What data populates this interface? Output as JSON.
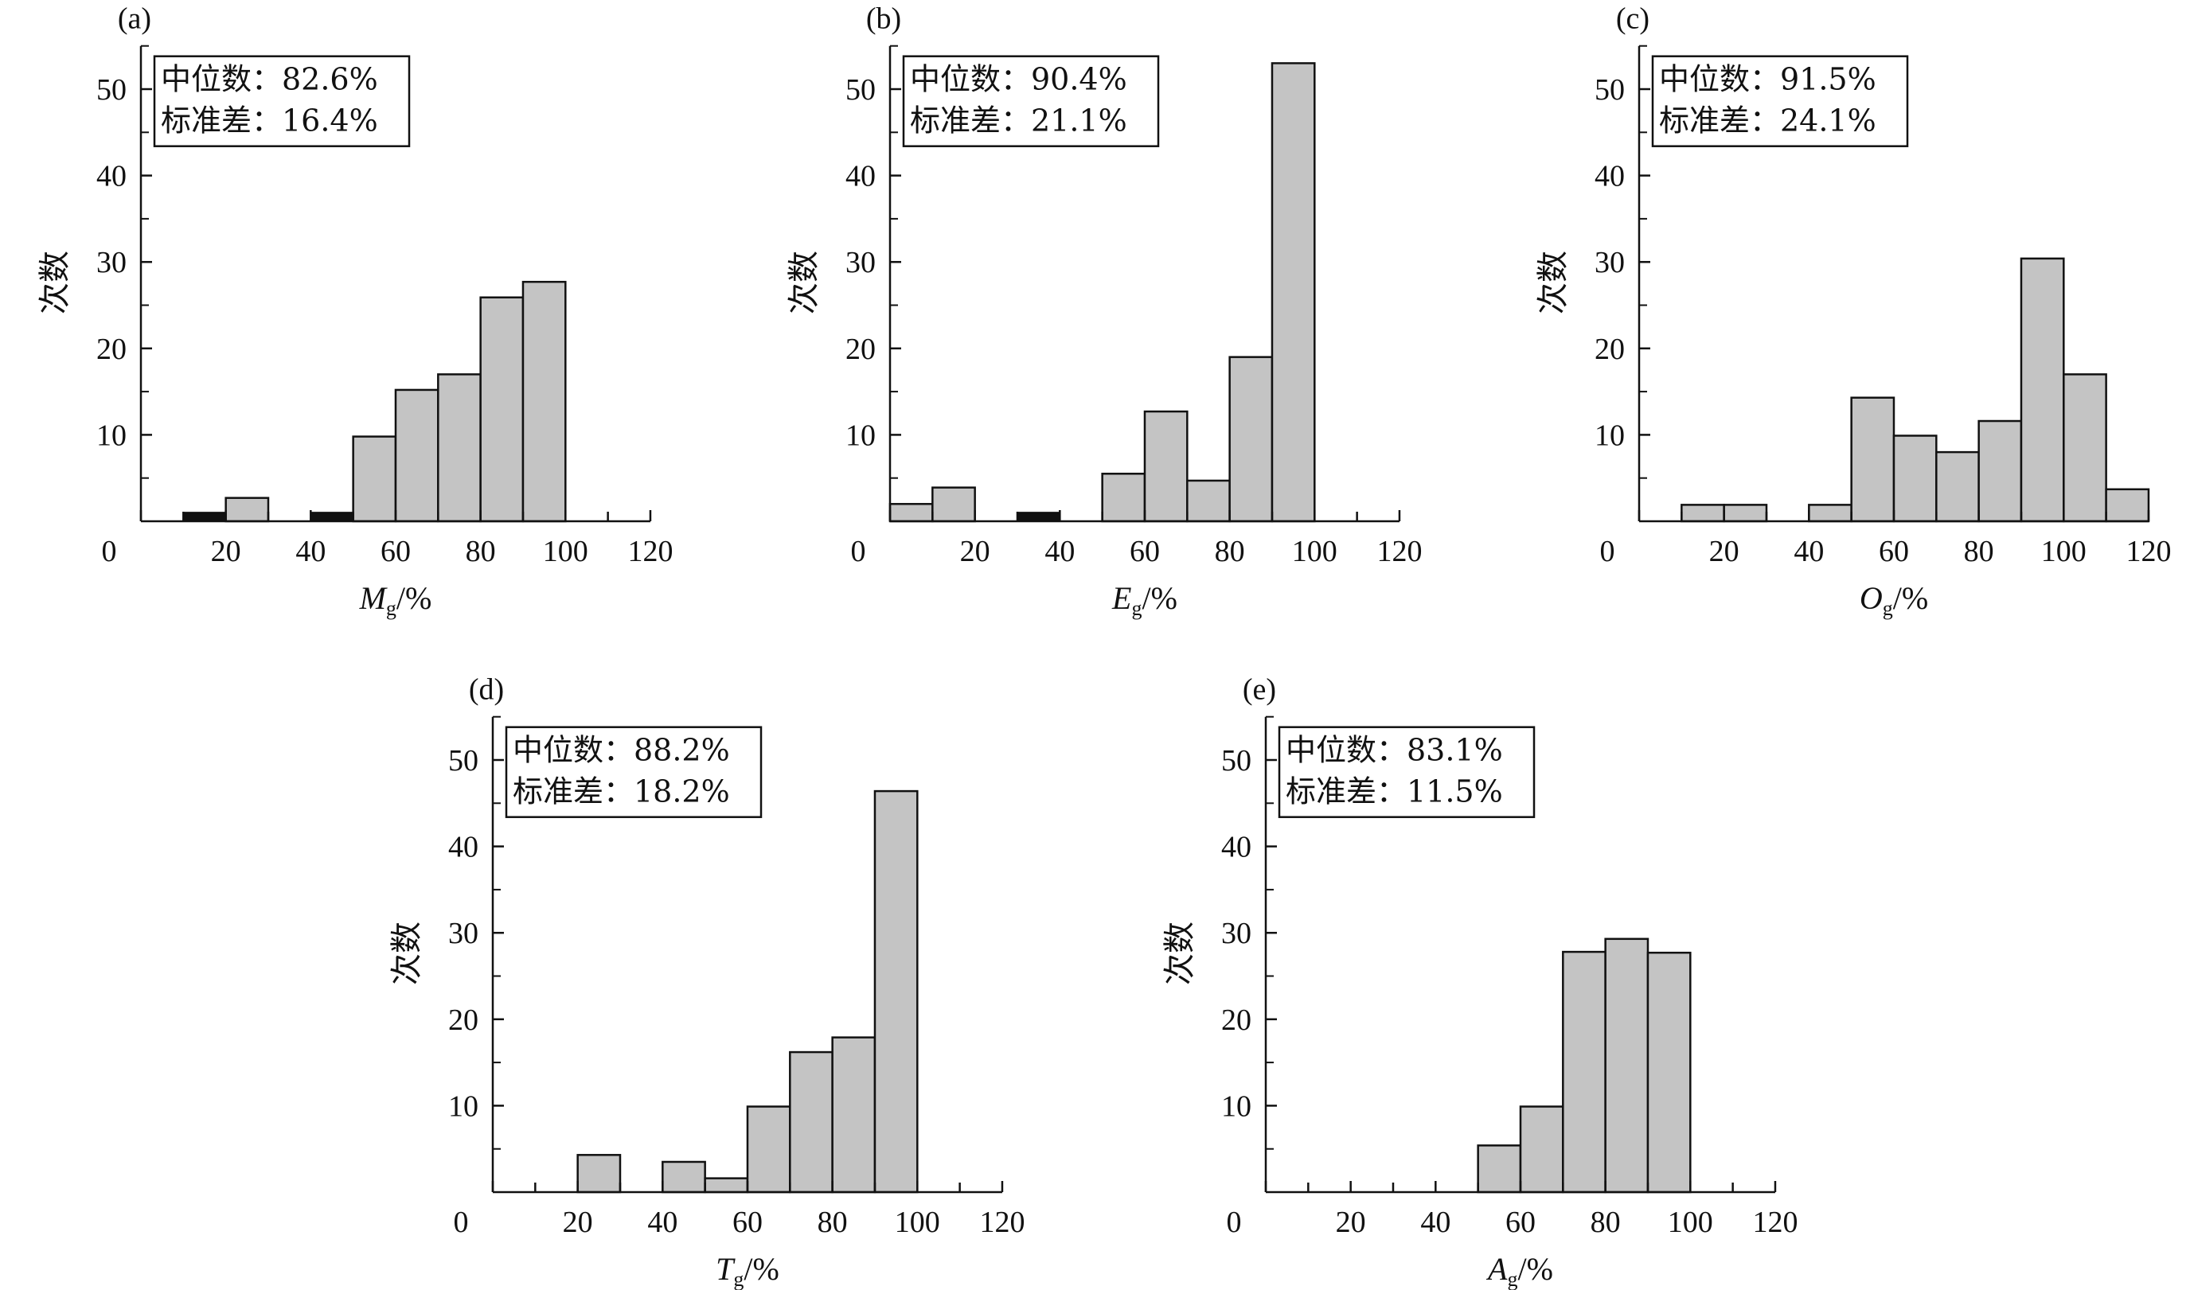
{
  "colors": {
    "bar_gray": "#c4c4c4",
    "bar_black": "#111111",
    "stroke": "#111111"
  },
  "chart_data": [
    {
      "type": "bar",
      "panel": "(a)",
      "xlabel_var": "M",
      "xlabel_sub": "g",
      "xlabel_unit": "/%",
      "ylabel": "次数",
      "stats": [
        "中位数：82.6%",
        "标准差：16.4%"
      ],
      "xlim": [
        0,
        120
      ],
      "ylim": [
        0,
        55
      ],
      "xticks": [
        0,
        20,
        40,
        60,
        80,
        100,
        120
      ],
      "yticks": [
        10,
        20,
        30,
        40,
        50
      ],
      "gray_bins": [
        {
          "x0": 20,
          "x1": 30,
          "value": 2.7
        },
        {
          "x0": 50,
          "x1": 60,
          "value": 9.8
        },
        {
          "x0": 60,
          "x1": 70,
          "value": 15.2
        },
        {
          "x0": 70,
          "x1": 80,
          "value": 17.0
        },
        {
          "x0": 80,
          "x1": 90,
          "value": 25.9
        },
        {
          "x0": 90,
          "x1": 100,
          "value": 27.7
        }
      ],
      "black_bins": [
        {
          "x0": 10,
          "x1": 20,
          "value": 1
        },
        {
          "x0": 40,
          "x1": 50,
          "value": 1
        }
      ]
    },
    {
      "type": "bar",
      "panel": "(b)",
      "xlabel_var": "E",
      "xlabel_sub": "g",
      "xlabel_unit": "/%",
      "ylabel": "次数",
      "stats": [
        "中位数：90.4%",
        "标准差：21.1%"
      ],
      "xlim": [
        0,
        120
      ],
      "ylim": [
        0,
        55
      ],
      "xticks": [
        0,
        20,
        40,
        60,
        80,
        100,
        120
      ],
      "yticks": [
        10,
        20,
        30,
        40,
        50
      ],
      "gray_bins": [
        {
          "x0": 0,
          "x1": 10,
          "value": 2.0
        },
        {
          "x0": 10,
          "x1": 20,
          "value": 3.9
        },
        {
          "x0": 50,
          "x1": 60,
          "value": 5.5
        },
        {
          "x0": 60,
          "x1": 70,
          "value": 12.7
        },
        {
          "x0": 70,
          "x1": 80,
          "value": 4.7
        },
        {
          "x0": 80,
          "x1": 90,
          "value": 19.0
        },
        {
          "x0": 90,
          "x1": 100,
          "value": 53.0
        }
      ],
      "black_bins": [
        {
          "x0": 30,
          "x1": 40,
          "value": 1
        }
      ]
    },
    {
      "type": "bar",
      "panel": "(c)",
      "xlabel_var": "O",
      "xlabel_sub": "g",
      "xlabel_unit": "/%",
      "ylabel": "次数",
      "stats": [
        "中位数：91.5%",
        "标准差：24.1%"
      ],
      "xlim": [
        0,
        120
      ],
      "ylim": [
        0,
        55
      ],
      "xticks": [
        0,
        20,
        40,
        60,
        80,
        100,
        120
      ],
      "yticks": [
        10,
        20,
        30,
        40,
        50
      ],
      "gray_bins": [
        {
          "x0": 10,
          "x1": 20,
          "value": 1.9
        },
        {
          "x0": 20,
          "x1": 30,
          "value": 1.9
        },
        {
          "x0": 40,
          "x1": 50,
          "value": 1.9
        },
        {
          "x0": 50,
          "x1": 60,
          "value": 14.3
        },
        {
          "x0": 60,
          "x1": 70,
          "value": 9.9
        },
        {
          "x0": 70,
          "x1": 80,
          "value": 8.0
        },
        {
          "x0": 80,
          "x1": 90,
          "value": 11.6
        },
        {
          "x0": 90,
          "x1": 100,
          "value": 30.4
        },
        {
          "x0": 100,
          "x1": 110,
          "value": 17.0
        },
        {
          "x0": 110,
          "x1": 120,
          "value": 3.7
        }
      ],
      "black_bins": []
    },
    {
      "type": "bar",
      "panel": "(d)",
      "xlabel_var": "T",
      "xlabel_sub": "g",
      "xlabel_unit": "/%",
      "ylabel": "次数",
      "stats": [
        "中位数：88.2%",
        "标准差：18.2%"
      ],
      "xlim": [
        0,
        120
      ],
      "ylim": [
        0,
        55
      ],
      "xticks": [
        0,
        20,
        40,
        60,
        80,
        100,
        120
      ],
      "yticks": [
        10,
        20,
        30,
        40,
        50
      ],
      "gray_bins": [
        {
          "x0": 20,
          "x1": 30,
          "value": 4.3
        },
        {
          "x0": 40,
          "x1": 50,
          "value": 3.5
        },
        {
          "x0": 50,
          "x1": 60,
          "value": 1.6
        },
        {
          "x0": 60,
          "x1": 70,
          "value": 9.9
        },
        {
          "x0": 70,
          "x1": 80,
          "value": 16.2
        },
        {
          "x0": 80,
          "x1": 90,
          "value": 17.9
        },
        {
          "x0": 90,
          "x1": 100,
          "value": 46.4
        }
      ],
      "black_bins": []
    },
    {
      "type": "bar",
      "panel": "(e)",
      "xlabel_var": "A",
      "xlabel_sub": "g",
      "xlabel_unit": "/%",
      "ylabel": "次数",
      "stats": [
        "中位数：83.1%",
        "标准差：11.5%"
      ],
      "xlim": [
        0,
        120
      ],
      "ylim": [
        0,
        55
      ],
      "xticks": [
        0,
        20,
        40,
        60,
        80,
        100,
        120
      ],
      "yticks": [
        10,
        20,
        30,
        40,
        50
      ],
      "gray_bins": [
        {
          "x0": 50,
          "x1": 60,
          "value": 5.4
        },
        {
          "x0": 60,
          "x1": 70,
          "value": 9.9
        },
        {
          "x0": 70,
          "x1": 80,
          "value": 27.8
        },
        {
          "x0": 80,
          "x1": 90,
          "value": 29.3
        },
        {
          "x0": 90,
          "x1": 100,
          "value": 27.7
        }
      ],
      "black_bins": []
    }
  ]
}
